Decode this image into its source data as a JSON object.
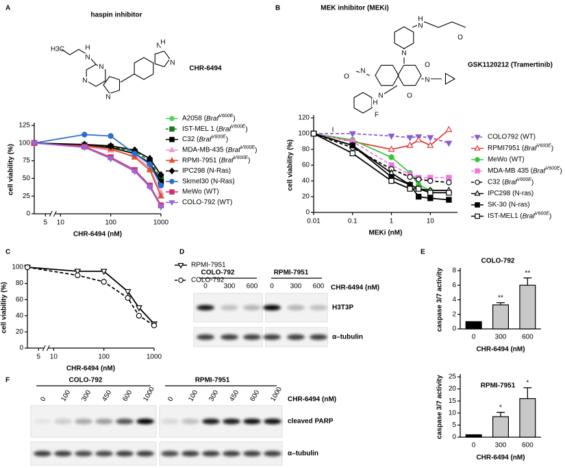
{
  "chart_data": [
    {
      "panel": "A",
      "type": "line",
      "title": "haspin inhibitor",
      "compound": "CHR-6494",
      "structure_labels": [
        "H3C",
        "N",
        "H",
        "N",
        "N",
        "N",
        "N",
        "H",
        "N"
      ],
      "x_label": "CHR-6494 (nM)",
      "y_label": "cell viability (%)",
      "x_scale": "log",
      "xlim": [
        3,
        1000
      ],
      "xticks": [
        5,
        10,
        100,
        1000
      ],
      "ylim": [
        0,
        125
      ],
      "yticks": [
        0,
        25,
        50,
        75,
        100,
        125
      ],
      "x": [
        3,
        30,
        100,
        300,
        600,
        1000
      ],
      "series": [
        {
          "name": "A2058 (BrafV600E)",
          "color": "#5ad35a",
          "marker": "circle",
          "open": false,
          "dashed": false,
          "values": [
            100,
            97,
            93,
            85,
            70,
            40
          ]
        },
        {
          "name": "IST-MEL 1 (BrafV600E)",
          "color": "#1b7a1b",
          "marker": "square",
          "open": false,
          "dashed": true,
          "values": [
            100,
            97,
            95,
            88,
            75,
            50
          ]
        },
        {
          "name": "C32 (BrafV600E)",
          "color": "#000000",
          "marker": "square",
          "open": false,
          "dashed": false,
          "values": [
            100,
            96,
            94,
            85,
            72,
            45
          ]
        },
        {
          "name": "MDA-MB-435 (BrafV600E)",
          "color": "#f09ad0",
          "marker": "triangle-up",
          "open": false,
          "dashed": false,
          "values": [
            100,
            95,
            90,
            82,
            65,
            30
          ]
        },
        {
          "name": "RPMI-7951 (BrafV600E)",
          "color": "#e0502a",
          "marker": "triangle-up",
          "open": false,
          "dashed": false,
          "values": [
            100,
            96,
            92,
            80,
            62,
            25
          ]
        },
        {
          "name": "IPC298 (N-Ras)",
          "color": "#000000",
          "marker": "diamond",
          "open": false,
          "dashed": false,
          "values": [
            100,
            98,
            96,
            90,
            78,
            55
          ]
        },
        {
          "name": "Skmel30 (N-Ras)",
          "color": "#2a6fd0",
          "marker": "circle",
          "open": false,
          "dashed": false,
          "values": [
            100,
            112,
            110,
            85,
            70,
            40
          ]
        },
        {
          "name": "MeWo (WT)",
          "color": "#d0306a",
          "marker": "square",
          "open": false,
          "dashed": false,
          "values": [
            100,
            95,
            80,
            62,
            40,
            12
          ]
        },
        {
          "name": "COLO-792 (WT)",
          "color": "#9966dd",
          "marker": "triangle-down",
          "open": false,
          "dashed": false,
          "values": [
            100,
            94,
            78,
            60,
            38,
            10
          ]
        }
      ]
    },
    {
      "panel": "B",
      "type": "line",
      "title": "MEK inhibitor (MEKi)",
      "compound": "GSK1120212 (Tramertinib)",
      "structure_labels": [
        "H",
        "N",
        "O",
        "N",
        "O",
        "N",
        "O",
        "N",
        "O",
        "N",
        "H",
        "I",
        "F"
      ],
      "x_label": "MEKi (nM)",
      "y_label": "cell viability (%)",
      "x_scale": "log",
      "xlim": [
        0.01,
        50
      ],
      "xticks": [
        0.01,
        0.1,
        1,
        10
      ],
      "ylim": [
        0,
        120
      ],
      "yticks": [
        0,
        20,
        40,
        60,
        80,
        100,
        120
      ],
      "x": [
        0.01,
        0.1,
        1,
        3,
        5,
        10,
        30
      ],
      "series": [
        {
          "name": "COLO792 (WT)",
          "color": "#8a5ad8",
          "marker": "triangle-down",
          "open": false,
          "dashed": true,
          "values": [
            100,
            100,
            97,
            95,
            96,
            95,
            88
          ]
        },
        {
          "name": "RPMI7951 (BrafV600E)",
          "color": "#e03a3a",
          "marker": "triangle-up",
          "open": true,
          "dashed": false,
          "values": [
            100,
            90,
            80,
            85,
            92,
            85,
            105
          ]
        },
        {
          "name": "MeWo (WT)",
          "color": "#3ac43a",
          "marker": "circle",
          "open": false,
          "dashed": false,
          "values": [
            100,
            92,
            70,
            50,
            35,
            28,
            null
          ]
        },
        {
          "name": "MDA-MB 435 (BrafV600E)",
          "color": "#f07ae0",
          "marker": "square",
          "open": false,
          "dashed": true,
          "values": [
            100,
            90,
            60,
            48,
            44,
            44,
            44
          ]
        },
        {
          "name": "C32 (BrafV600E)",
          "color": "#000000",
          "marker": "circle",
          "open": true,
          "dashed": true,
          "values": [
            100,
            82,
            55,
            45,
            42,
            40,
            38
          ]
        },
        {
          "name": "IPC298 (N-ras)",
          "color": "#000000",
          "marker": "triangle-up",
          "open": true,
          "dashed": false,
          "values": [
            100,
            85,
            50,
            35,
            30,
            28,
            28
          ]
        },
        {
          "name": "SK-30 (N-ras)",
          "color": "#000000",
          "marker": "square",
          "open": false,
          "dashed": false,
          "values": [
            100,
            85,
            45,
            35,
            20,
            18,
            16
          ]
        },
        {
          "name": "IST-MEL1 (BrafV600E)",
          "color": "#000000",
          "marker": "square",
          "open": true,
          "dashed": false,
          "values": [
            100,
            75,
            40,
            30,
            30,
            25,
            25
          ]
        }
      ]
    },
    {
      "panel": "C",
      "type": "line",
      "x_label": "CHR-6494 (nM)",
      "y_label": "cell viability (%)",
      "x_scale": "log",
      "xlim": [
        3,
        1000
      ],
      "xticks": [
        5,
        10,
        100,
        1000
      ],
      "ylim": [
        0,
        100
      ],
      "yticks": [
        0,
        20,
        40,
        60,
        80,
        100
      ],
      "x": [
        3,
        30,
        100,
        300,
        500,
        1000
      ],
      "series": [
        {
          "name": "RPMI-7951",
          "color": "#000000",
          "marker": "triangle-down",
          "open": true,
          "dashed": false,
          "values": [
            100,
            95,
            95,
            70,
            50,
            30
          ]
        },
        {
          "name": "COLO-792",
          "color": "#000000",
          "marker": "circle",
          "open": true,
          "dashed": true,
          "values": [
            100,
            90,
            82,
            62,
            40,
            28
          ]
        }
      ]
    },
    {
      "panel": "E",
      "type": "bar",
      "title": "COLO-792",
      "x_label": "CHR-6494 (nM)",
      "y_label": "caspase 3/7 activity",
      "categories": [
        "0",
        "300",
        "600"
      ],
      "values": [
        1,
        3.3,
        6
      ],
      "errors": [
        0,
        0.3,
        1
      ],
      "annotations": [
        null,
        "**",
        "**"
      ],
      "colors": [
        "#000000",
        "#c8c8c8",
        "#c8c8c8"
      ],
      "ylim": [
        0,
        8
      ],
      "yticks": [
        0,
        2,
        4,
        6,
        8
      ]
    },
    {
      "type": "bar",
      "title": "RPMI-7951",
      "x_label": "CHR-6494 (nM)",
      "y_label": "caspase 3/7 activity",
      "categories": [
        "0",
        "300",
        "600"
      ],
      "values": [
        1,
        8.5,
        16
      ],
      "errors": [
        0,
        1.8,
        4.5
      ],
      "annotations": [
        null,
        "*",
        "*"
      ],
      "colors": [
        "#000000",
        "#c8c8c8",
        "#c8c8c8"
      ],
      "ylim": [
        0,
        25
      ],
      "yticks": [
        0,
        5,
        10,
        15,
        20,
        25
      ]
    }
  ],
  "blots": [
    {
      "panel": "D",
      "groups": [
        "COLO-792",
        "RPMI-7951"
      ],
      "lanes": [
        "0",
        "300",
        "600"
      ],
      "treatment": "CHR-6494 (nM)",
      "rows": [
        "H3T3P",
        "α–tubulin"
      ]
    },
    {
      "panel": "F",
      "groups": [
        "COLO-792",
        "RPMI-7951"
      ],
      "lanes": [
        "0",
        "100",
        "300",
        "450",
        "600",
        "1000"
      ],
      "treatment": "CHR-6494 (nM)",
      "rows": [
        "cleaved PARP",
        "α–tubulin"
      ]
    }
  ]
}
